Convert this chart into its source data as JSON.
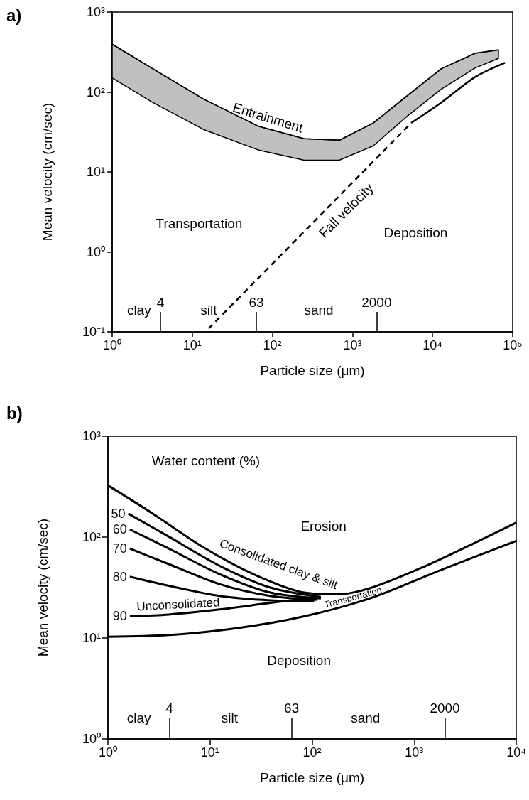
{
  "chart_data": [
    {
      "type": "line",
      "title": "a)",
      "xlabel": "Particle size (μm)",
      "ylabel": "Mean velocity (cm/sec)",
      "log": "xy",
      "xlim": [
        1,
        100000
      ],
      "ylim": [
        0.1,
        1000
      ],
      "xticks": [
        {
          "value": 1,
          "label": "10⁰"
        },
        {
          "value": 10,
          "label": "10¹"
        },
        {
          "value": 100,
          "label": "10²"
        },
        {
          "value": 1000,
          "label": "10³"
        },
        {
          "value": 10000,
          "label": "10⁴"
        },
        {
          "value": 100000,
          "label": "10⁵"
        }
      ],
      "yticks": [
        {
          "value": 0.1,
          "label": "10⁻¹"
        },
        {
          "value": 1,
          "label": "10⁰"
        },
        {
          "value": 10,
          "label": "10¹"
        },
        {
          "value": 100,
          "label": "10²"
        },
        {
          "value": 1000,
          "label": "10³"
        }
      ],
      "marker": "none",
      "grid": false,
      "series": [
        {
          "color": "#000000",
          "x": [
            1,
            3.2,
            13.8,
            66,
            250,
            690,
            1820,
            4840,
            12900,
            34000,
            66400
          ],
          "values": [
            396,
            196,
            81.7,
            37.5,
            26,
            25,
            41,
            90,
            196,
            305,
            336
          ],
          "upper": [
            396,
            196,
            81.7,
            37.5,
            26,
            25,
            41,
            90,
            196,
            305,
            336
          ],
          "lower": [
            150,
            74,
            34,
            18.9,
            14,
            14.1,
            21.2,
            50,
            109,
            200,
            263
          ]
        },
        {
          "color": "#000000",
          "line_style": "dashed",
          "x": [
            16,
            5450
          ],
          "values": [
            0.11,
            41.3
          ]
        },
        {
          "color": "#000000",
          "line_style": "solid",
          "x": [
            5450,
            12900,
            34000,
            80000
          ],
          "values": [
            41.3,
            74,
            154,
            232
          ]
        }
      ],
      "ref_lines": [
        {
          "axis": "x",
          "value": 4,
          "label": "4"
        },
        {
          "axis": "x",
          "value": 63,
          "label": "63"
        },
        {
          "axis": "x",
          "value": 2000,
          "label": "2000"
        }
      ],
      "annotations": [
        "clay",
        "silt",
        "sand",
        "Transportation",
        "Deposition",
        "Entrainment",
        "Fall velocity"
      ]
    },
    {
      "type": "line",
      "title": "b)",
      "xlabel": "Particle size (μm)",
      "ylabel": "Mean velocity (cm/sec)",
      "log": "xy",
      "xlim": [
        1,
        10000
      ],
      "ylim": [
        1,
        1000
      ],
      "xticks": [
        {
          "value": 1,
          "label": "10⁰"
        },
        {
          "value": 10,
          "label": "10¹"
        },
        {
          "value": 100,
          "label": "10²"
        },
        {
          "value": 1000,
          "label": "10³"
        },
        {
          "value": 10000,
          "label": "10⁴"
        }
      ],
      "yticks": [
        {
          "value": 1,
          "label": "10⁰"
        },
        {
          "value": 10,
          "label": "10¹"
        },
        {
          "value": 100,
          "label": "10²"
        },
        {
          "value": 1000,
          "label": "10³"
        }
      ],
      "marker": "none",
      "grid": false,
      "series": [
        {
          "color": "#000000",
          "x": [
            1,
            2.7,
            8.47,
            26.6,
            83.6,
            179,
            385,
            1210,
            3800,
            10000
          ],
          "values": [
            326,
            173,
            80,
            43,
            28.2,
            27.1,
            31.6,
            50.2,
            86.3,
            139
          ]
        },
        {
          "name": "50",
          "color": "#000000",
          "x": [
            1.58,
            3.95,
            12.4,
            39,
            122
          ],
          "values": [
            171,
            101,
            52,
            31.6,
            25.5
          ]
        },
        {
          "name": "60",
          "color": "#000000",
          "x": [
            1.64,
            3.95,
            12.4,
            39,
            122
          ],
          "values": [
            119,
            77,
            43,
            28.2,
            24.7
          ]
        },
        {
          "name": "70",
          "color": "#000000",
          "x": [
            1.64,
            3.95,
            12.4,
            39,
            113
          ],
          "values": [
            77,
            54,
            34.2,
            26.1,
            23.9
          ]
        },
        {
          "name": "80",
          "color": "#000000",
          "x": [
            1.64,
            3.95,
            12.4,
            39,
            105
          ],
          "values": [
            40.5,
            32.9,
            26.1,
            23.6,
            23.2
          ]
        },
        {
          "name": "90",
          "color": "#000000",
          "x": [
            1.64,
            3.95,
            12.4,
            39,
            105
          ],
          "values": [
            16.4,
            17.1,
            19.2,
            22.3,
            25.1
          ]
        },
        {
          "color": "#000000",
          "x": [
            1,
            3.95,
            18.2,
            83.6,
            385,
            1770,
            10000
          ],
          "values": [
            10.3,
            10.7,
            12.5,
            16.4,
            25.1,
            46.6,
            91.8
          ]
        }
      ],
      "ref_lines": [
        {
          "axis": "x",
          "value": 4,
          "label": "4"
        },
        {
          "axis": "x",
          "value": 63,
          "label": "63"
        },
        {
          "axis": "x",
          "value": 2000,
          "label": "2000"
        }
      ],
      "annotations": [
        "Water content (%)",
        "Erosion",
        "Consolidated clay & silt",
        "Unconsolidated",
        "Transportation",
        "Deposition",
        "clay",
        "silt",
        "sand"
      ]
    }
  ]
}
